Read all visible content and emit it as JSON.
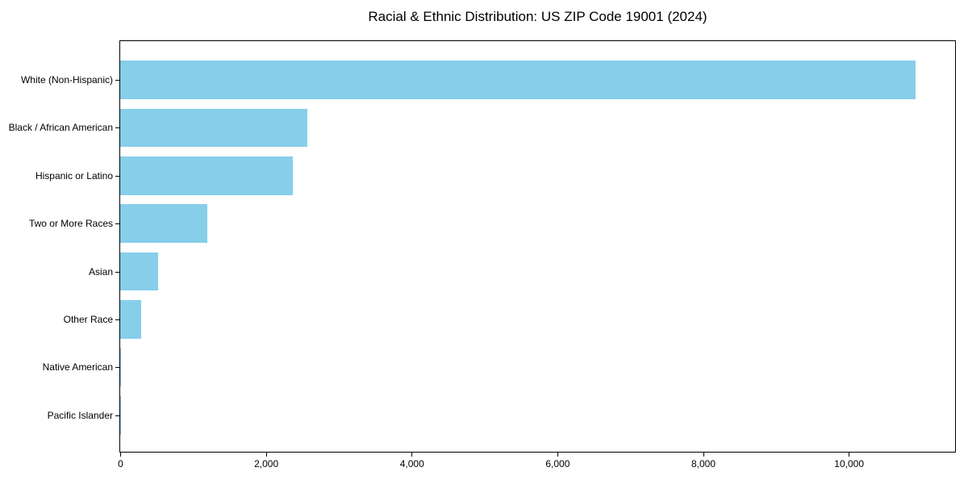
{
  "chart_data": {
    "type": "bar",
    "orientation": "horizontal",
    "title": "Racial & Ethnic Distribution: US ZIP Code 19001 (2024)",
    "categories": [
      "White (Non-Hispanic)",
      "Black / African American",
      "Hispanic or Latino",
      "Two or More Races",
      "Asian",
      "Other Race",
      "Native American",
      "Pacific Islander"
    ],
    "values": [
      10920,
      2570,
      2365,
      1200,
      525,
      285,
      15,
      2
    ],
    "bar_color": "#87CEEB",
    "background_color": "#ffffff",
    "axis_color": "#000000",
    "xlabel": "",
    "ylabel": "",
    "xlim": [
      0,
      11460
    ],
    "xticks": [
      0,
      2000,
      4000,
      6000,
      8000,
      10000
    ],
    "xtick_labels": [
      "0",
      "2,000",
      "4,000",
      "6,000",
      "8,000",
      "10,000"
    ],
    "grid": false,
    "legend": null
  }
}
